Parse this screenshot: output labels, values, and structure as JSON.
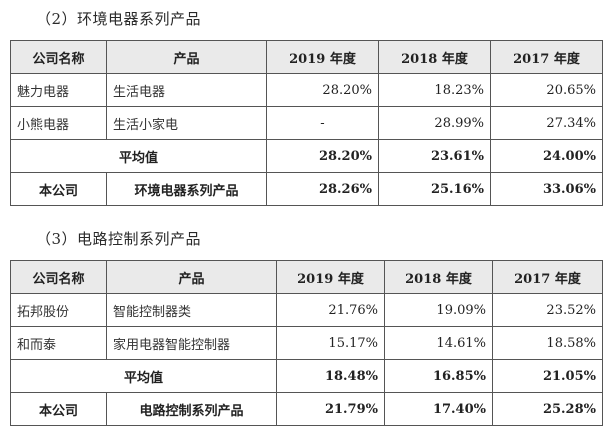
{
  "sections": [
    {
      "title": "（2）环境电器系列产品",
      "headers": [
        "公司名称",
        "产品",
        "2019 年度",
        "2018 年度",
        "2017 年度"
      ],
      "rows": [
        [
          "魅力电器",
          "生活电器",
          "28.20%",
          "18.23%",
          "20.65%"
        ],
        [
          "小熊电器",
          "生活小家电",
          "-",
          "28.99%",
          "27.34%"
        ]
      ],
      "average": {
        "label": "平均值",
        "values": [
          "28.20%",
          "23.61%",
          "24.00%"
        ]
      },
      "company": {
        "name": "本公司",
        "product": "环境电器系列产品",
        "values": [
          "28.26%",
          "25.16%",
          "33.06%"
        ]
      }
    },
    {
      "title": "（3）电路控制系列产品",
      "headers": [
        "公司名称",
        "产品",
        "2019 年度",
        "2018 年度",
        "2017 年度"
      ],
      "rows": [
        [
          "拓邦股份",
          "智能控制器类",
          "21.76%",
          "19.09%",
          "23.52%"
        ],
        [
          "和而泰",
          "家用电器智能控制器",
          "15.17%",
          "14.61%",
          "18.58%"
        ]
      ],
      "average": {
        "label": "平均值",
        "values": [
          "18.48%",
          "16.85%",
          "21.05%"
        ]
      },
      "company": {
        "name": "本公司",
        "product": "电路控制系列产品",
        "values": [
          "21.79%",
          "17.40%",
          "25.28%"
        ]
      }
    }
  ]
}
